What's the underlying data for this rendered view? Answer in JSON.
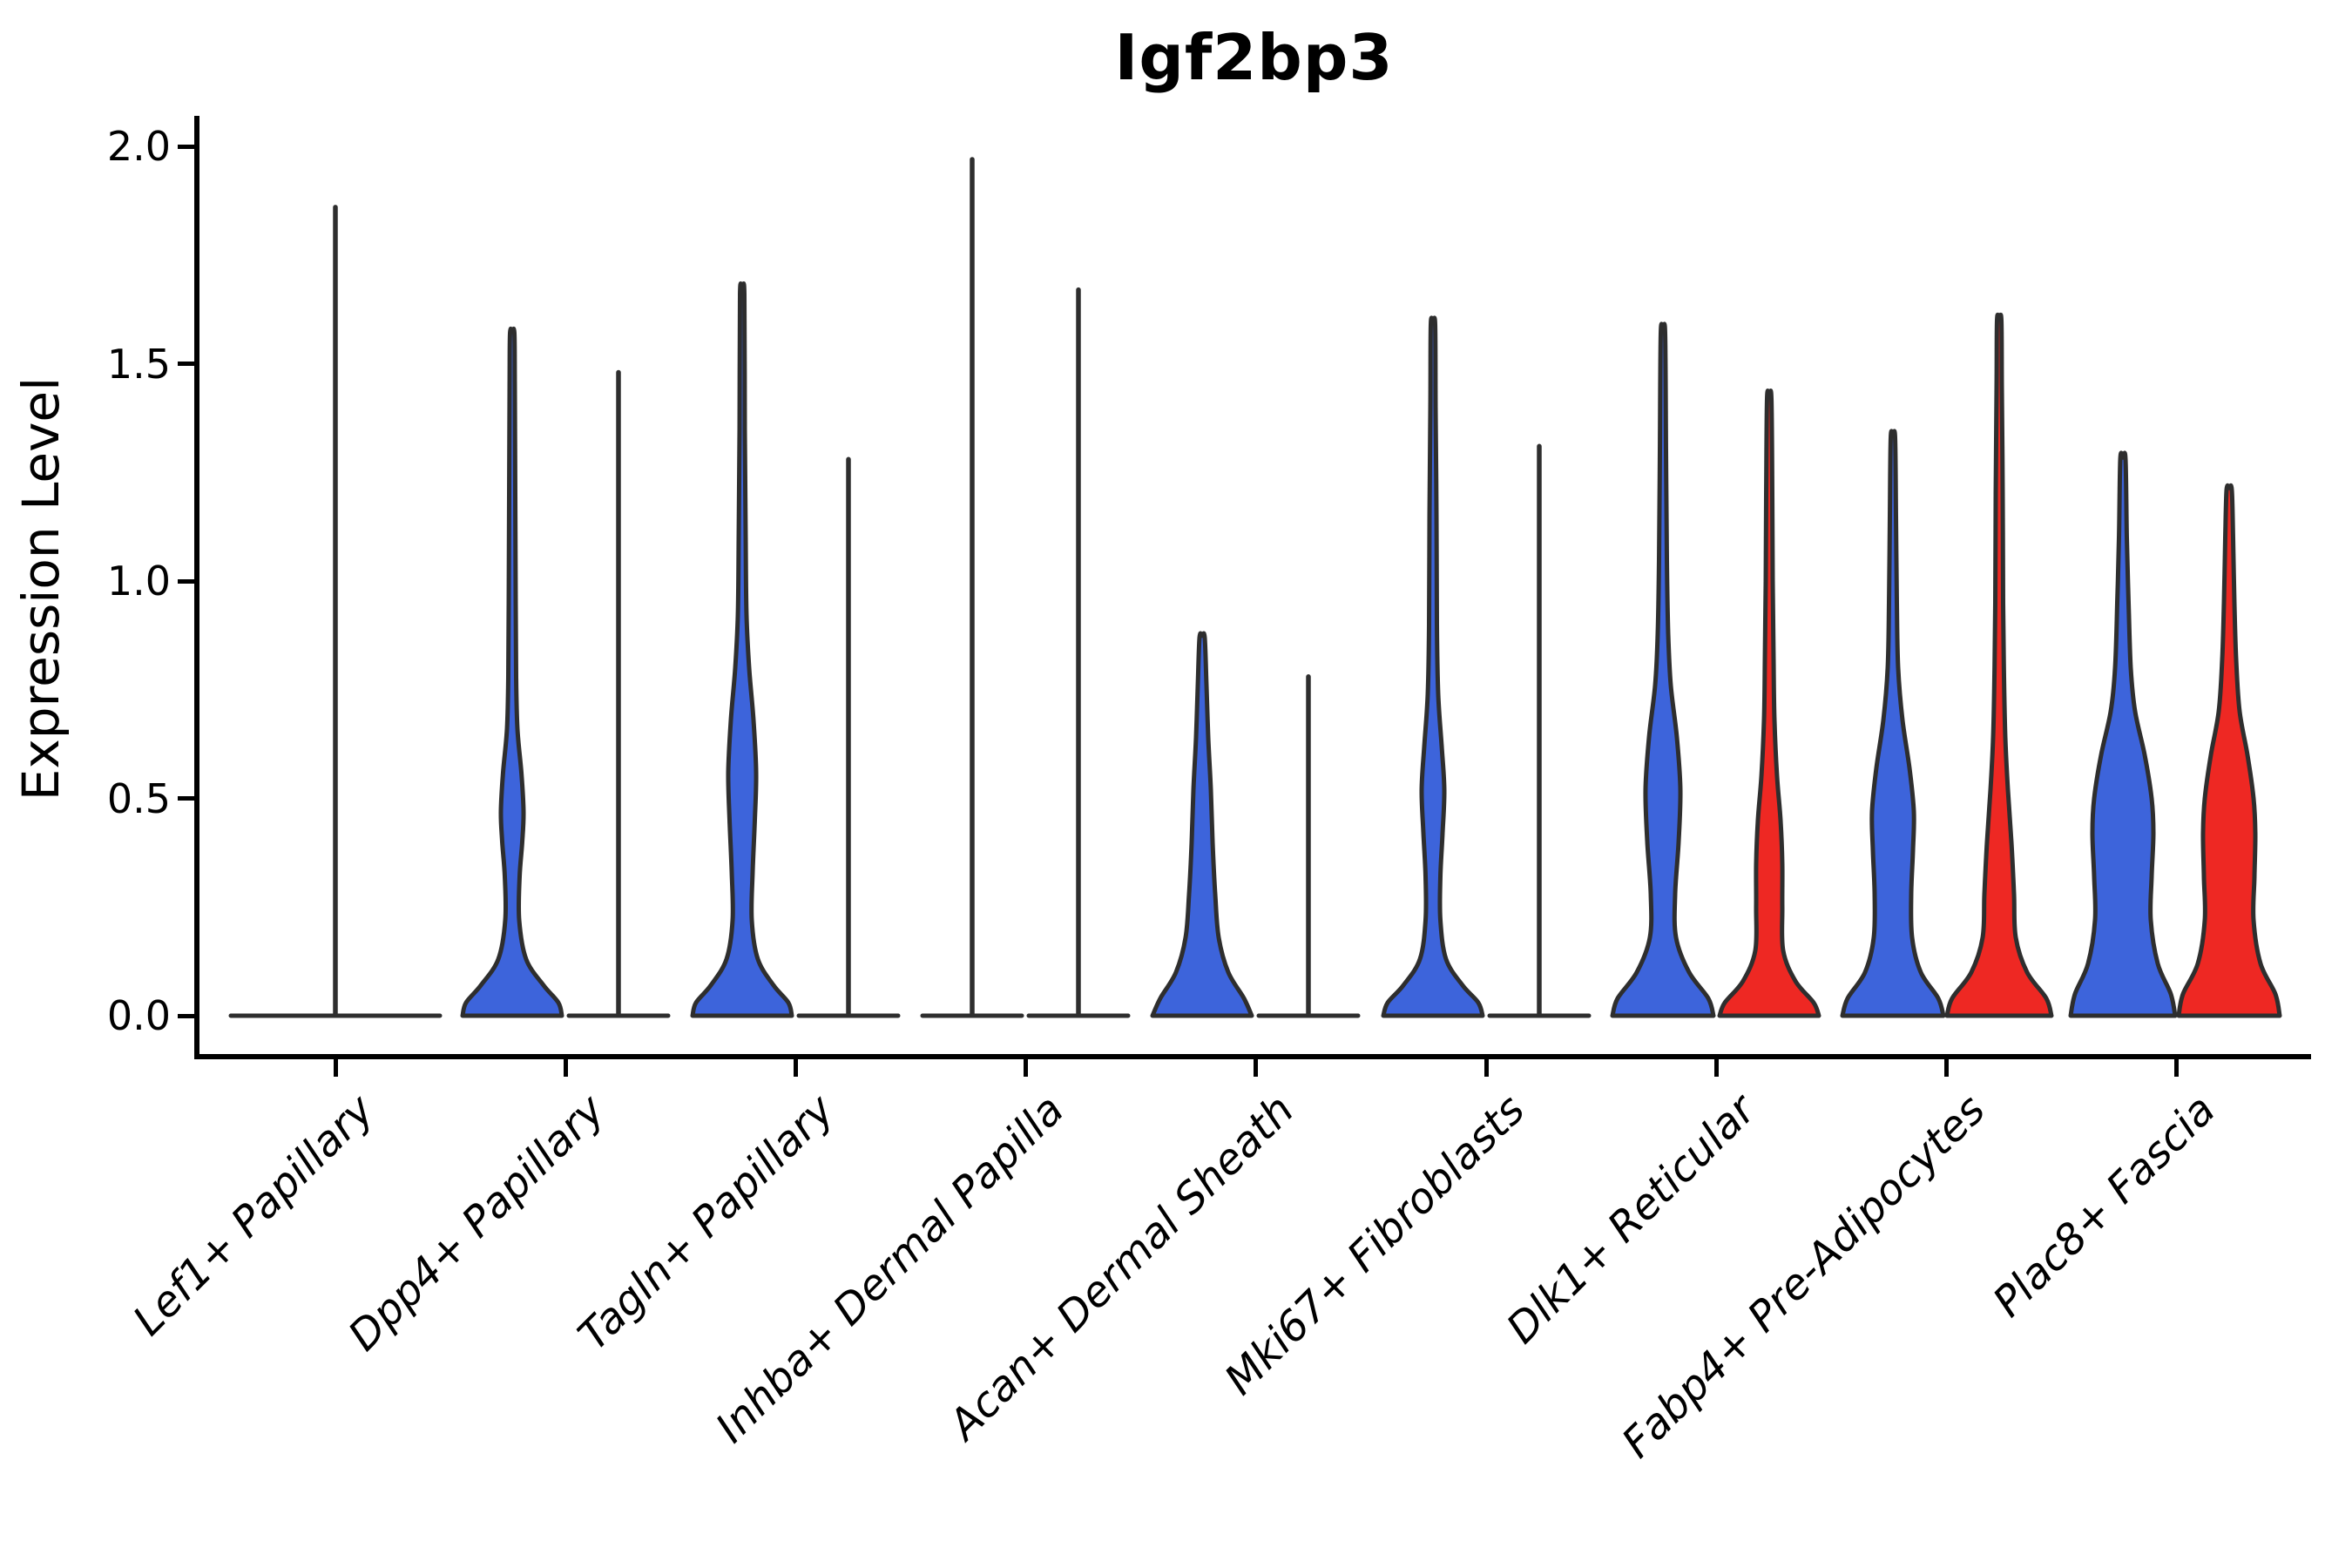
{
  "chart_data": {
    "type": "violin",
    "title": "Igf2bp3",
    "xlabel": "",
    "ylabel": "Expression Level",
    "ylim": [
      0,
      2.0
    ],
    "yticks": [
      0.0,
      0.5,
      1.0,
      1.5,
      2.0
    ],
    "ytick_labels": [
      "0.0",
      "0.5",
      "1.0",
      "1.5",
      "2.0"
    ],
    "grid": false,
    "legend": "none",
    "colors": {
      "blue": "#3d64db",
      "red": "#ee2823",
      "outline": "#2e2e2e"
    },
    "categories": [
      "Lef1+ Papillary",
      "Dpp4+ Papillary",
      "Tagln+ Papillary",
      "Inhba+ Dermal Papilla",
      "Acan+ Dermal Sheath",
      "Mki67+ Fibroblasts",
      "Dlk1+ Reticular",
      "Fabp4+ Pre-Adipocytes",
      "Plac8+ Fascia"
    ],
    "groups": [
      {
        "category": "Lef1+ Papillary",
        "violins": [
          {
            "position": "center",
            "fill": "none",
            "max_expression": 1.86,
            "degenerate": true,
            "base_halfwidth": 120
          }
        ]
      },
      {
        "category": "Dpp4+ Papillary",
        "violins": [
          {
            "position": "left",
            "fill": "blue",
            "max_expression": 1.57,
            "profile": [
              [
                0,
                57
              ],
              [
                0.03,
                53
              ],
              [
                0.07,
                36
              ],
              [
                0.13,
                16
              ],
              [
                0.22,
                8
              ],
              [
                0.32,
                8.5
              ],
              [
                0.4,
                11.5
              ],
              [
                0.47,
                13
              ],
              [
                0.56,
                10.5
              ],
              [
                0.66,
                6
              ],
              [
                0.78,
                4.5
              ],
              [
                0.95,
                4
              ],
              [
                1.2,
                3.5
              ],
              [
                1.45,
                3
              ],
              [
                1.57,
                2.5
              ]
            ]
          },
          {
            "position": "right",
            "fill": "none",
            "max_expression": 1.48,
            "degenerate": true,
            "base_halfwidth": 57
          }
        ]
      },
      {
        "category": "Tagln+ Papillary",
        "violins": [
          {
            "position": "left",
            "fill": "blue",
            "max_expression": 1.66,
            "profile": [
              [
                0,
                57
              ],
              [
                0.03,
                53
              ],
              [
                0.07,
                36
              ],
              [
                0.13,
                18
              ],
              [
                0.22,
                11
              ],
              [
                0.33,
                12
              ],
              [
                0.45,
                14.5
              ],
              [
                0.56,
                16
              ],
              [
                0.68,
                13
              ],
              [
                0.8,
                8
              ],
              [
                0.92,
                5
              ],
              [
                1.1,
                4
              ],
              [
                1.35,
                3
              ],
              [
                1.66,
                2.5
              ]
            ]
          },
          {
            "position": "right",
            "fill": "none",
            "max_expression": 1.28,
            "degenerate": true,
            "base_halfwidth": 57
          }
        ]
      },
      {
        "category": "Inhba+ Dermal Papilla",
        "violins": [
          {
            "position": "left",
            "fill": "none",
            "max_expression": 1.97,
            "degenerate": true,
            "base_halfwidth": 57
          },
          {
            "position": "right",
            "fill": "none",
            "max_expression": 1.67,
            "degenerate": true,
            "base_halfwidth": 57
          }
        ]
      },
      {
        "category": "Acan+ Dermal Sheath",
        "violins": [
          {
            "position": "left",
            "fill": "blue",
            "max_expression": 0.87,
            "profile": [
              [
                0,
                57
              ],
              [
                0.04,
                48
              ],
              [
                0.1,
                30
              ],
              [
                0.18,
                19
              ],
              [
                0.28,
                15
              ],
              [
                0.4,
                12
              ],
              [
                0.52,
                10
              ],
              [
                0.64,
                7
              ],
              [
                0.76,
                5
              ],
              [
                0.87,
                3
              ]
            ]
          },
          {
            "position": "right",
            "fill": "none",
            "max_expression": 0.78,
            "degenerate": true,
            "base_halfwidth": 57
          }
        ]
      },
      {
        "category": "Mki67+ Fibroblasts",
        "violins": [
          {
            "position": "left",
            "fill": "blue",
            "max_expression": 1.59,
            "profile": [
              [
                0,
                57
              ],
              [
                0.03,
                52
              ],
              [
                0.07,
                34
              ],
              [
                0.13,
                15
              ],
              [
                0.22,
                8.5
              ],
              [
                0.32,
                8.5
              ],
              [
                0.42,
                11
              ],
              [
                0.52,
                13
              ],
              [
                0.62,
                10
              ],
              [
                0.74,
                6
              ],
              [
                0.9,
                4.5
              ],
              [
                1.15,
                4
              ],
              [
                1.4,
                3
              ],
              [
                1.59,
                2.5
              ]
            ]
          },
          {
            "position": "right",
            "fill": "none",
            "max_expression": 1.31,
            "degenerate": true,
            "base_halfwidth": 57
          }
        ]
      },
      {
        "category": "Dlk1+ Reticular",
        "violins": [
          {
            "position": "left",
            "fill": "blue",
            "max_expression": 1.57,
            "profile": [
              [
                0,
                58
              ],
              [
                0.04,
                52
              ],
              [
                0.1,
                30
              ],
              [
                0.18,
                15
              ],
              [
                0.28,
                14
              ],
              [
                0.4,
                18
              ],
              [
                0.52,
                20
              ],
              [
                0.64,
                16
              ],
              [
                0.76,
                9
              ],
              [
                0.88,
                6
              ],
              [
                1.05,
                4.5
              ],
              [
                1.3,
                3.5
              ],
              [
                1.57,
                2.5
              ]
            ]
          },
          {
            "position": "right",
            "fill": "red",
            "max_expression": 1.42,
            "profile": [
              [
                0,
                57
              ],
              [
                0.03,
                51
              ],
              [
                0.08,
                30
              ],
              [
                0.15,
                16
              ],
              [
                0.25,
                15
              ],
              [
                0.35,
                15
              ],
              [
                0.45,
                13
              ],
              [
                0.55,
                9
              ],
              [
                0.68,
                6
              ],
              [
                0.82,
                5
              ],
              [
                1.0,
                4
              ],
              [
                1.2,
                3.5
              ],
              [
                1.42,
                2.5
              ]
            ]
          }
        ]
      },
      {
        "category": "Fabp4+ Pre-Adipocytes",
        "violins": [
          {
            "position": "left",
            "fill": "blue",
            "max_expression": 1.33,
            "profile": [
              [
                0,
                58
              ],
              [
                0.04,
                52
              ],
              [
                0.1,
                32
              ],
              [
                0.18,
                22
              ],
              [
                0.28,
                21
              ],
              [
                0.38,
                23
              ],
              [
                0.47,
                24
              ],
              [
                0.57,
                19
              ],
              [
                0.68,
                11
              ],
              [
                0.8,
                6
              ],
              [
                0.95,
                4.5
              ],
              [
                1.15,
                3.5
              ],
              [
                1.33,
                2.5
              ]
            ]
          },
          {
            "position": "right",
            "fill": "red",
            "max_expression": 1.6,
            "profile": [
              [
                0,
                60
              ],
              [
                0.04,
                54
              ],
              [
                0.1,
                32
              ],
              [
                0.18,
                19
              ],
              [
                0.28,
                17
              ],
              [
                0.4,
                14
              ],
              [
                0.52,
                10
              ],
              [
                0.64,
                7
              ],
              [
                0.78,
                5.5
              ],
              [
                0.95,
                4.5
              ],
              [
                1.2,
                4
              ],
              [
                1.45,
                3
              ],
              [
                1.6,
                2.5
              ]
            ]
          }
        ]
      },
      {
        "category": "Plac8+ Fascia",
        "violins": [
          {
            "position": "left",
            "fill": "blue",
            "max_expression": 1.28,
            "profile": [
              [
                0,
                60
              ],
              [
                0.05,
                55
              ],
              [
                0.12,
                40
              ],
              [
                0.22,
                32
              ],
              [
                0.32,
                33
              ],
              [
                0.42,
                35
              ],
              [
                0.5,
                33
              ],
              [
                0.6,
                25
              ],
              [
                0.7,
                14
              ],
              [
                0.8,
                9
              ],
              [
                0.95,
                6.5
              ],
              [
                1.1,
                4.5
              ],
              [
                1.28,
                3
              ]
            ]
          },
          {
            "position": "right",
            "fill": "red",
            "max_expression": 1.21,
            "profile": [
              [
                0,
                58
              ],
              [
                0.05,
                53
              ],
              [
                0.12,
                36
              ],
              [
                0.22,
                28
              ],
              [
                0.32,
                29
              ],
              [
                0.42,
                30
              ],
              [
                0.5,
                28
              ],
              [
                0.6,
                21
              ],
              [
                0.7,
                12
              ],
              [
                0.82,
                8
              ],
              [
                0.95,
                6
              ],
              [
                1.1,
                4.5
              ],
              [
                1.21,
                3
              ]
            ]
          }
        ]
      }
    ]
  }
}
